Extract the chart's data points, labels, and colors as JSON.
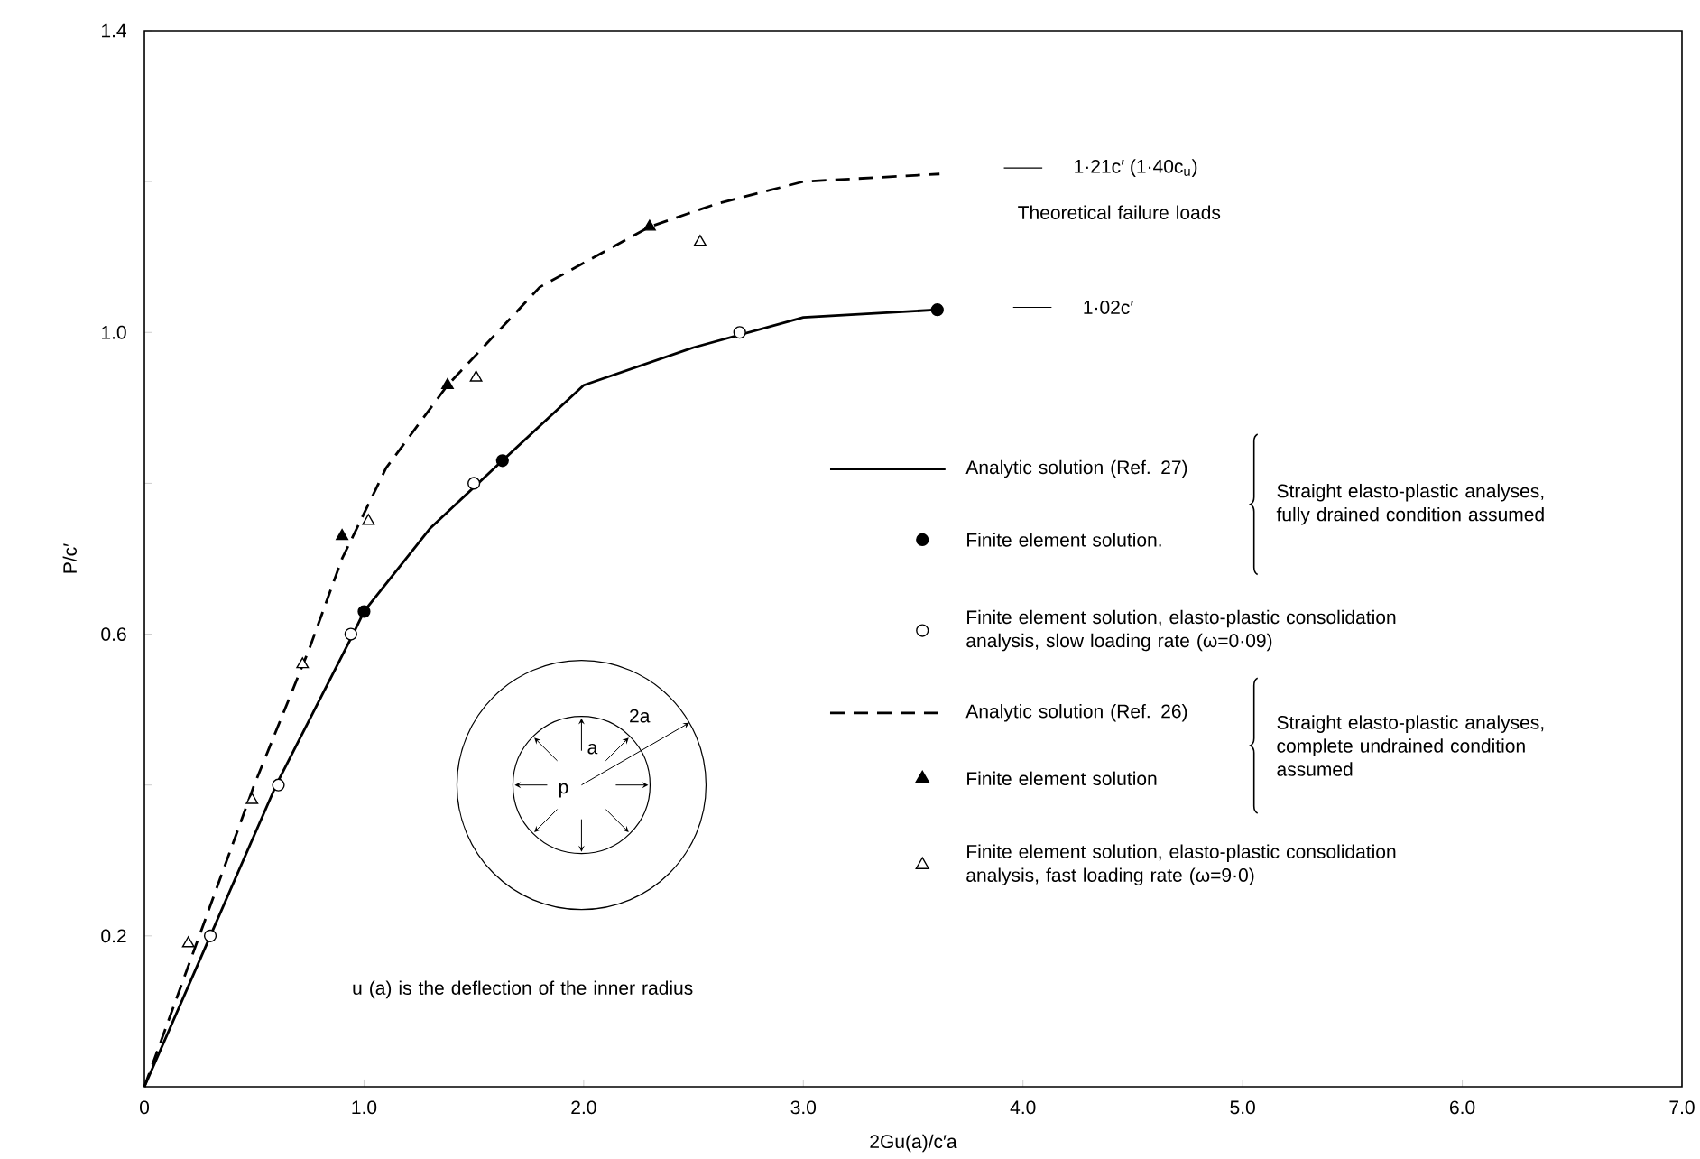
{
  "chart_data": {
    "type": "line",
    "xlabel": "2Gu(a)/c′a",
    "ylabel": "P/c′",
    "xlim": [
      0,
      7
    ],
    "ylim": [
      0,
      1.4
    ],
    "xticks": [
      {
        "value": 0,
        "label": "0"
      },
      {
        "value": 1,
        "label": "1.0"
      },
      {
        "value": 2,
        "label": "2.0"
      },
      {
        "value": 3,
        "label": "3.0"
      },
      {
        "value": 4,
        "label": "4.0"
      },
      {
        "value": 5,
        "label": "5.0"
      },
      {
        "value": 6,
        "label": "6.0"
      },
      {
        "value": 7,
        "label": "7.0"
      }
    ],
    "yticks": [
      {
        "value": 0.2,
        "label": "0.2"
      },
      {
        "value": 0.4,
        "label": null
      },
      {
        "value": 0.6,
        "label": "0.6"
      },
      {
        "value": 0.8,
        "label": null
      },
      {
        "value": 1.0,
        "label": "1.0"
      },
      {
        "value": 1.2,
        "label": null
      },
      {
        "value": 1.4,
        "label": "1.4"
      }
    ],
    "legend": "right",
    "series": [
      {
        "name": "Analytic solution (Ref. 27)",
        "line_style": "solid",
        "color": "#000000",
        "x": [
          0,
          0.3,
          0.6,
          0.95,
          1.0,
          1.3,
          1.63,
          2.0,
          2.5,
          3.0,
          3.61
        ],
        "values": [
          0,
          0.2,
          0.4,
          0.6,
          0.63,
          0.74,
          0.83,
          0.93,
          0.98,
          1.02,
          1.03
        ]
      },
      {
        "name": "Finite element solution.",
        "type": "scatter",
        "marker": "circle",
        "color": "#000000",
        "x": [
          1.0,
          1.63,
          3.61
        ],
        "values": [
          0.63,
          0.83,
          1.03
        ]
      },
      {
        "name": "Finite element solution, elasto-plastic consolidation analysis, slow loading rate (ω=0·09)",
        "type": "scatter",
        "marker": "circle",
        "color": "#ffffff",
        "x": [
          0.3,
          0.61,
          0.94,
          1.5,
          2.71
        ],
        "values": [
          0.2,
          0.4,
          0.6,
          0.8,
          1.0
        ]
      },
      {
        "name": "Analytic solution (Ref. 26)",
        "line_style": "dashed",
        "color": "#000000",
        "x": [
          0,
          0.25,
          0.5,
          0.75,
          0.9,
          1.1,
          1.38,
          1.8,
          2.3,
          2.6,
          3.0,
          3.62
        ],
        "values": [
          0,
          0.2,
          0.4,
          0.58,
          0.7,
          0.82,
          0.93,
          1.06,
          1.14,
          1.17,
          1.2,
          1.21
        ]
      },
      {
        "name": "Finite element solution",
        "type": "scatter",
        "marker": "triangle",
        "color": "#000000",
        "x": [
          0.9,
          1.38,
          2.3
        ],
        "values": [
          0.73,
          0.93,
          1.14
        ]
      },
      {
        "name": "Finite element solution, elasto-plastic consolidation analysis, fast loading rate (ω=9·0)",
        "type": "scatter",
        "marker": "triangle",
        "color": "#ffffff",
        "x": [
          0.2,
          0.49,
          0.72,
          1.02,
          1.51,
          2.53
        ],
        "values": [
          0.19,
          0.38,
          0.56,
          0.75,
          0.94,
          1.12
        ]
      }
    ],
    "annotations": [
      "1·21c′ (1·40c$_{u}$)",
      "1·02c′",
      "Theoretical failure loads",
      "u (a) is the deflection of the inner radius",
      "Straight elasto-plastic analyses, fully drained condition assumed",
      "Straight elasto-plastic analyses, complete undrained condition assumed",
      "2a",
      "a",
      "p"
    ]
  }
}
